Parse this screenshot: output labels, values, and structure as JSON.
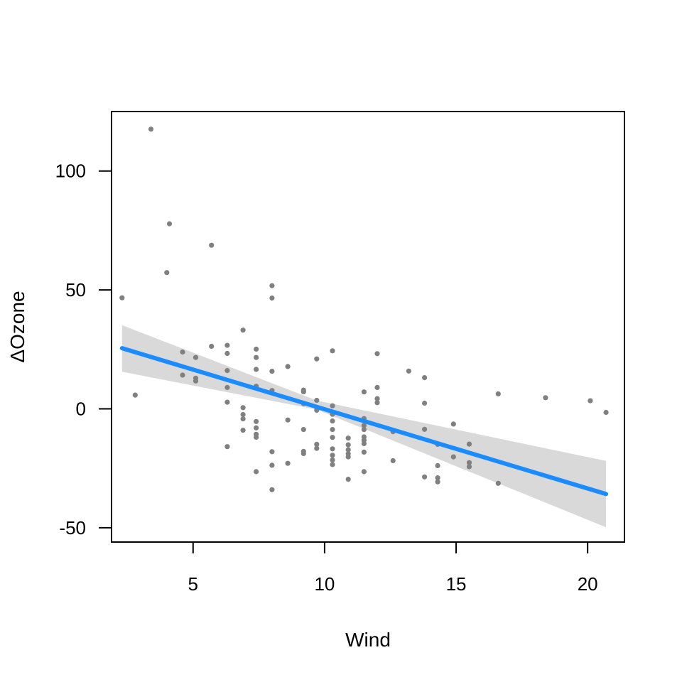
{
  "chart_data": {
    "type": "scatter",
    "xlabel": "Wind",
    "ylabel": "ΔOzone",
    "xlim": [
      1.9,
      21.4
    ],
    "ylim": [
      -56,
      125
    ],
    "xticks": [
      5,
      10,
      15,
      20
    ],
    "yticks": [
      -50,
      0,
      50,
      100
    ],
    "grid": false,
    "colors": {
      "points": "#808080",
      "fit_line": "#1A8CFF",
      "band": "#D9D9D9"
    },
    "fit_line": {
      "x": [
        2.3,
        20.7
      ],
      "y": [
        25.5,
        -35.8
      ]
    },
    "confidence_band": {
      "x": [
        2.3,
        9.7,
        20.7
      ],
      "upper": [
        35.2,
        3.5,
        -21.9
      ],
      "lower": [
        15.6,
        -0.3,
        -49.8
      ]
    },
    "points": [
      {
        "x": 2.3,
        "y": 46.7
      },
      {
        "x": 2.8,
        "y": 5.8
      },
      {
        "x": 3.4,
        "y": 117.6
      },
      {
        "x": 4.0,
        "y": 57.3
      },
      {
        "x": 4.1,
        "y": 77.8
      },
      {
        "x": 4.6,
        "y": 23.9
      },
      {
        "x": 4.6,
        "y": 14.2
      },
      {
        "x": 5.1,
        "y": 21.6
      },
      {
        "x": 5.1,
        "y": 12.9
      },
      {
        "x": 5.1,
        "y": 11.7
      },
      {
        "x": 5.7,
        "y": 68.8
      },
      {
        "x": 5.7,
        "y": 26.3
      },
      {
        "x": 6.3,
        "y": 26.7
      },
      {
        "x": 6.3,
        "y": 23.3
      },
      {
        "x": 6.3,
        "y": 16.1
      },
      {
        "x": 6.3,
        "y": 9.0
      },
      {
        "x": 6.3,
        "y": 2.8
      },
      {
        "x": 6.3,
        "y": -15.9
      },
      {
        "x": 6.9,
        "y": 33.1
      },
      {
        "x": 6.9,
        "y": 0.5
      },
      {
        "x": 6.9,
        "y": -2.4
      },
      {
        "x": 6.9,
        "y": -4.2
      },
      {
        "x": 6.9,
        "y": -9.0
      },
      {
        "x": 7.4,
        "y": 25.1
      },
      {
        "x": 7.4,
        "y": 21.6
      },
      {
        "x": 7.4,
        "y": 16.6
      },
      {
        "x": 7.4,
        "y": 9.5
      },
      {
        "x": 7.4,
        "y": -5.3
      },
      {
        "x": 7.4,
        "y": -8.0
      },
      {
        "x": 7.4,
        "y": -10.7
      },
      {
        "x": 7.4,
        "y": -11.9
      },
      {
        "x": 7.4,
        "y": -26.4
      },
      {
        "x": 8.0,
        "y": 51.8
      },
      {
        "x": 8.0,
        "y": 46.6
      },
      {
        "x": 8.0,
        "y": 15.8
      },
      {
        "x": 8.0,
        "y": 7.7
      },
      {
        "x": 8.0,
        "y": -18.0
      },
      {
        "x": 8.0,
        "y": -23.7
      },
      {
        "x": 8.0,
        "y": -34.0
      },
      {
        "x": 8.6,
        "y": 17.8
      },
      {
        "x": 8.6,
        "y": -4.7
      },
      {
        "x": 8.6,
        "y": -22.9
      },
      {
        "x": 9.2,
        "y": 7.9
      },
      {
        "x": 9.2,
        "y": 7.2
      },
      {
        "x": 9.2,
        "y": 2.2
      },
      {
        "x": 9.2,
        "y": -8.7
      },
      {
        "x": 9.2,
        "y": -17.9
      },
      {
        "x": 9.2,
        "y": -18.8
      },
      {
        "x": 9.7,
        "y": 21.0
      },
      {
        "x": 9.7,
        "y": 3.6
      },
      {
        "x": 9.7,
        "y": 0.5
      },
      {
        "x": 9.7,
        "y": -0.6
      },
      {
        "x": 9.7,
        "y": -14.9
      },
      {
        "x": 9.7,
        "y": -16.6
      },
      {
        "x": 10.3,
        "y": 24.4
      },
      {
        "x": 10.3,
        "y": 1.3
      },
      {
        "x": 10.3,
        "y": -2.3
      },
      {
        "x": 10.3,
        "y": -5.1
      },
      {
        "x": 10.3,
        "y": -8.7
      },
      {
        "x": 10.3,
        "y": -12.0
      },
      {
        "x": 10.3,
        "y": -16.8
      },
      {
        "x": 10.3,
        "y": -19.5
      },
      {
        "x": 10.3,
        "y": -21.5
      },
      {
        "x": 10.3,
        "y": -23.4
      },
      {
        "x": 10.9,
        "y": -12.3
      },
      {
        "x": 10.9,
        "y": -15.1
      },
      {
        "x": 10.9,
        "y": -17.2
      },
      {
        "x": 10.9,
        "y": -18.9
      },
      {
        "x": 10.9,
        "y": -20.2
      },
      {
        "x": 10.9,
        "y": -29.6
      },
      {
        "x": 11.5,
        "y": 7.1
      },
      {
        "x": 11.5,
        "y": -4.1
      },
      {
        "x": 11.5,
        "y": -7.0
      },
      {
        "x": 11.5,
        "y": -8.7
      },
      {
        "x": 11.5,
        "y": -11.8
      },
      {
        "x": 11.5,
        "y": -13.2
      },
      {
        "x": 11.5,
        "y": -14.6
      },
      {
        "x": 11.5,
        "y": -18.2
      },
      {
        "x": 11.5,
        "y": -26.4
      },
      {
        "x": 12.0,
        "y": 23.2
      },
      {
        "x": 12.0,
        "y": 9.0
      },
      {
        "x": 12.0,
        "y": 4.3
      },
      {
        "x": 12.0,
        "y": 2.6
      },
      {
        "x": 12.6,
        "y": -9.6
      },
      {
        "x": 12.6,
        "y": -21.8
      },
      {
        "x": 13.2,
        "y": 15.9
      },
      {
        "x": 13.8,
        "y": 13.1
      },
      {
        "x": 13.8,
        "y": 2.4
      },
      {
        "x": 13.8,
        "y": -8.6
      },
      {
        "x": 13.8,
        "y": -28.6
      },
      {
        "x": 14.3,
        "y": -14.9
      },
      {
        "x": 14.3,
        "y": -23.9
      },
      {
        "x": 14.3,
        "y": -29.0
      },
      {
        "x": 14.3,
        "y": -30.7
      },
      {
        "x": 14.9,
        "y": -6.4
      },
      {
        "x": 14.9,
        "y": -20.2
      },
      {
        "x": 15.5,
        "y": -14.8
      },
      {
        "x": 15.5,
        "y": -22.6
      },
      {
        "x": 15.5,
        "y": -24.3
      },
      {
        "x": 16.6,
        "y": 6.3
      },
      {
        "x": 16.6,
        "y": -31.3
      },
      {
        "x": 18.4,
        "y": 4.7
      },
      {
        "x": 20.1,
        "y": 3.4
      },
      {
        "x": 20.7,
        "y": -1.5
      }
    ]
  }
}
